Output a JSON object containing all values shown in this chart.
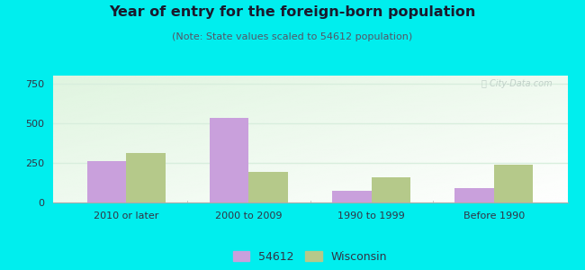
{
  "title": "Year of entry for the foreign-born population",
  "subtitle": "(Note: State values scaled to 54612 population)",
  "categories": [
    "2010 or later",
    "2000 to 2009",
    "1990 to 1999",
    "Before 1990"
  ],
  "values_54612": [
    262,
    535,
    72,
    90
  ],
  "values_wisconsin": [
    310,
    192,
    158,
    238
  ],
  "color_54612": "#c9a0dc",
  "color_wisconsin": "#b5c98a",
  "ylim": [
    0,
    800
  ],
  "yticks": [
    0,
    250,
    500,
    750
  ],
  "bar_width": 0.32,
  "outer_bg": "#00eeee",
  "legend_54612": "54612",
  "legend_wisconsin": "Wisconsin",
  "title_fontsize": 11.5,
  "subtitle_fontsize": 8,
  "tick_fontsize": 8,
  "legend_fontsize": 9,
  "watermark_color": "#c0d0c8",
  "grid_color": "#d8eedd",
  "title_color": "#1a1a2e",
  "subtitle_color": "#555566"
}
